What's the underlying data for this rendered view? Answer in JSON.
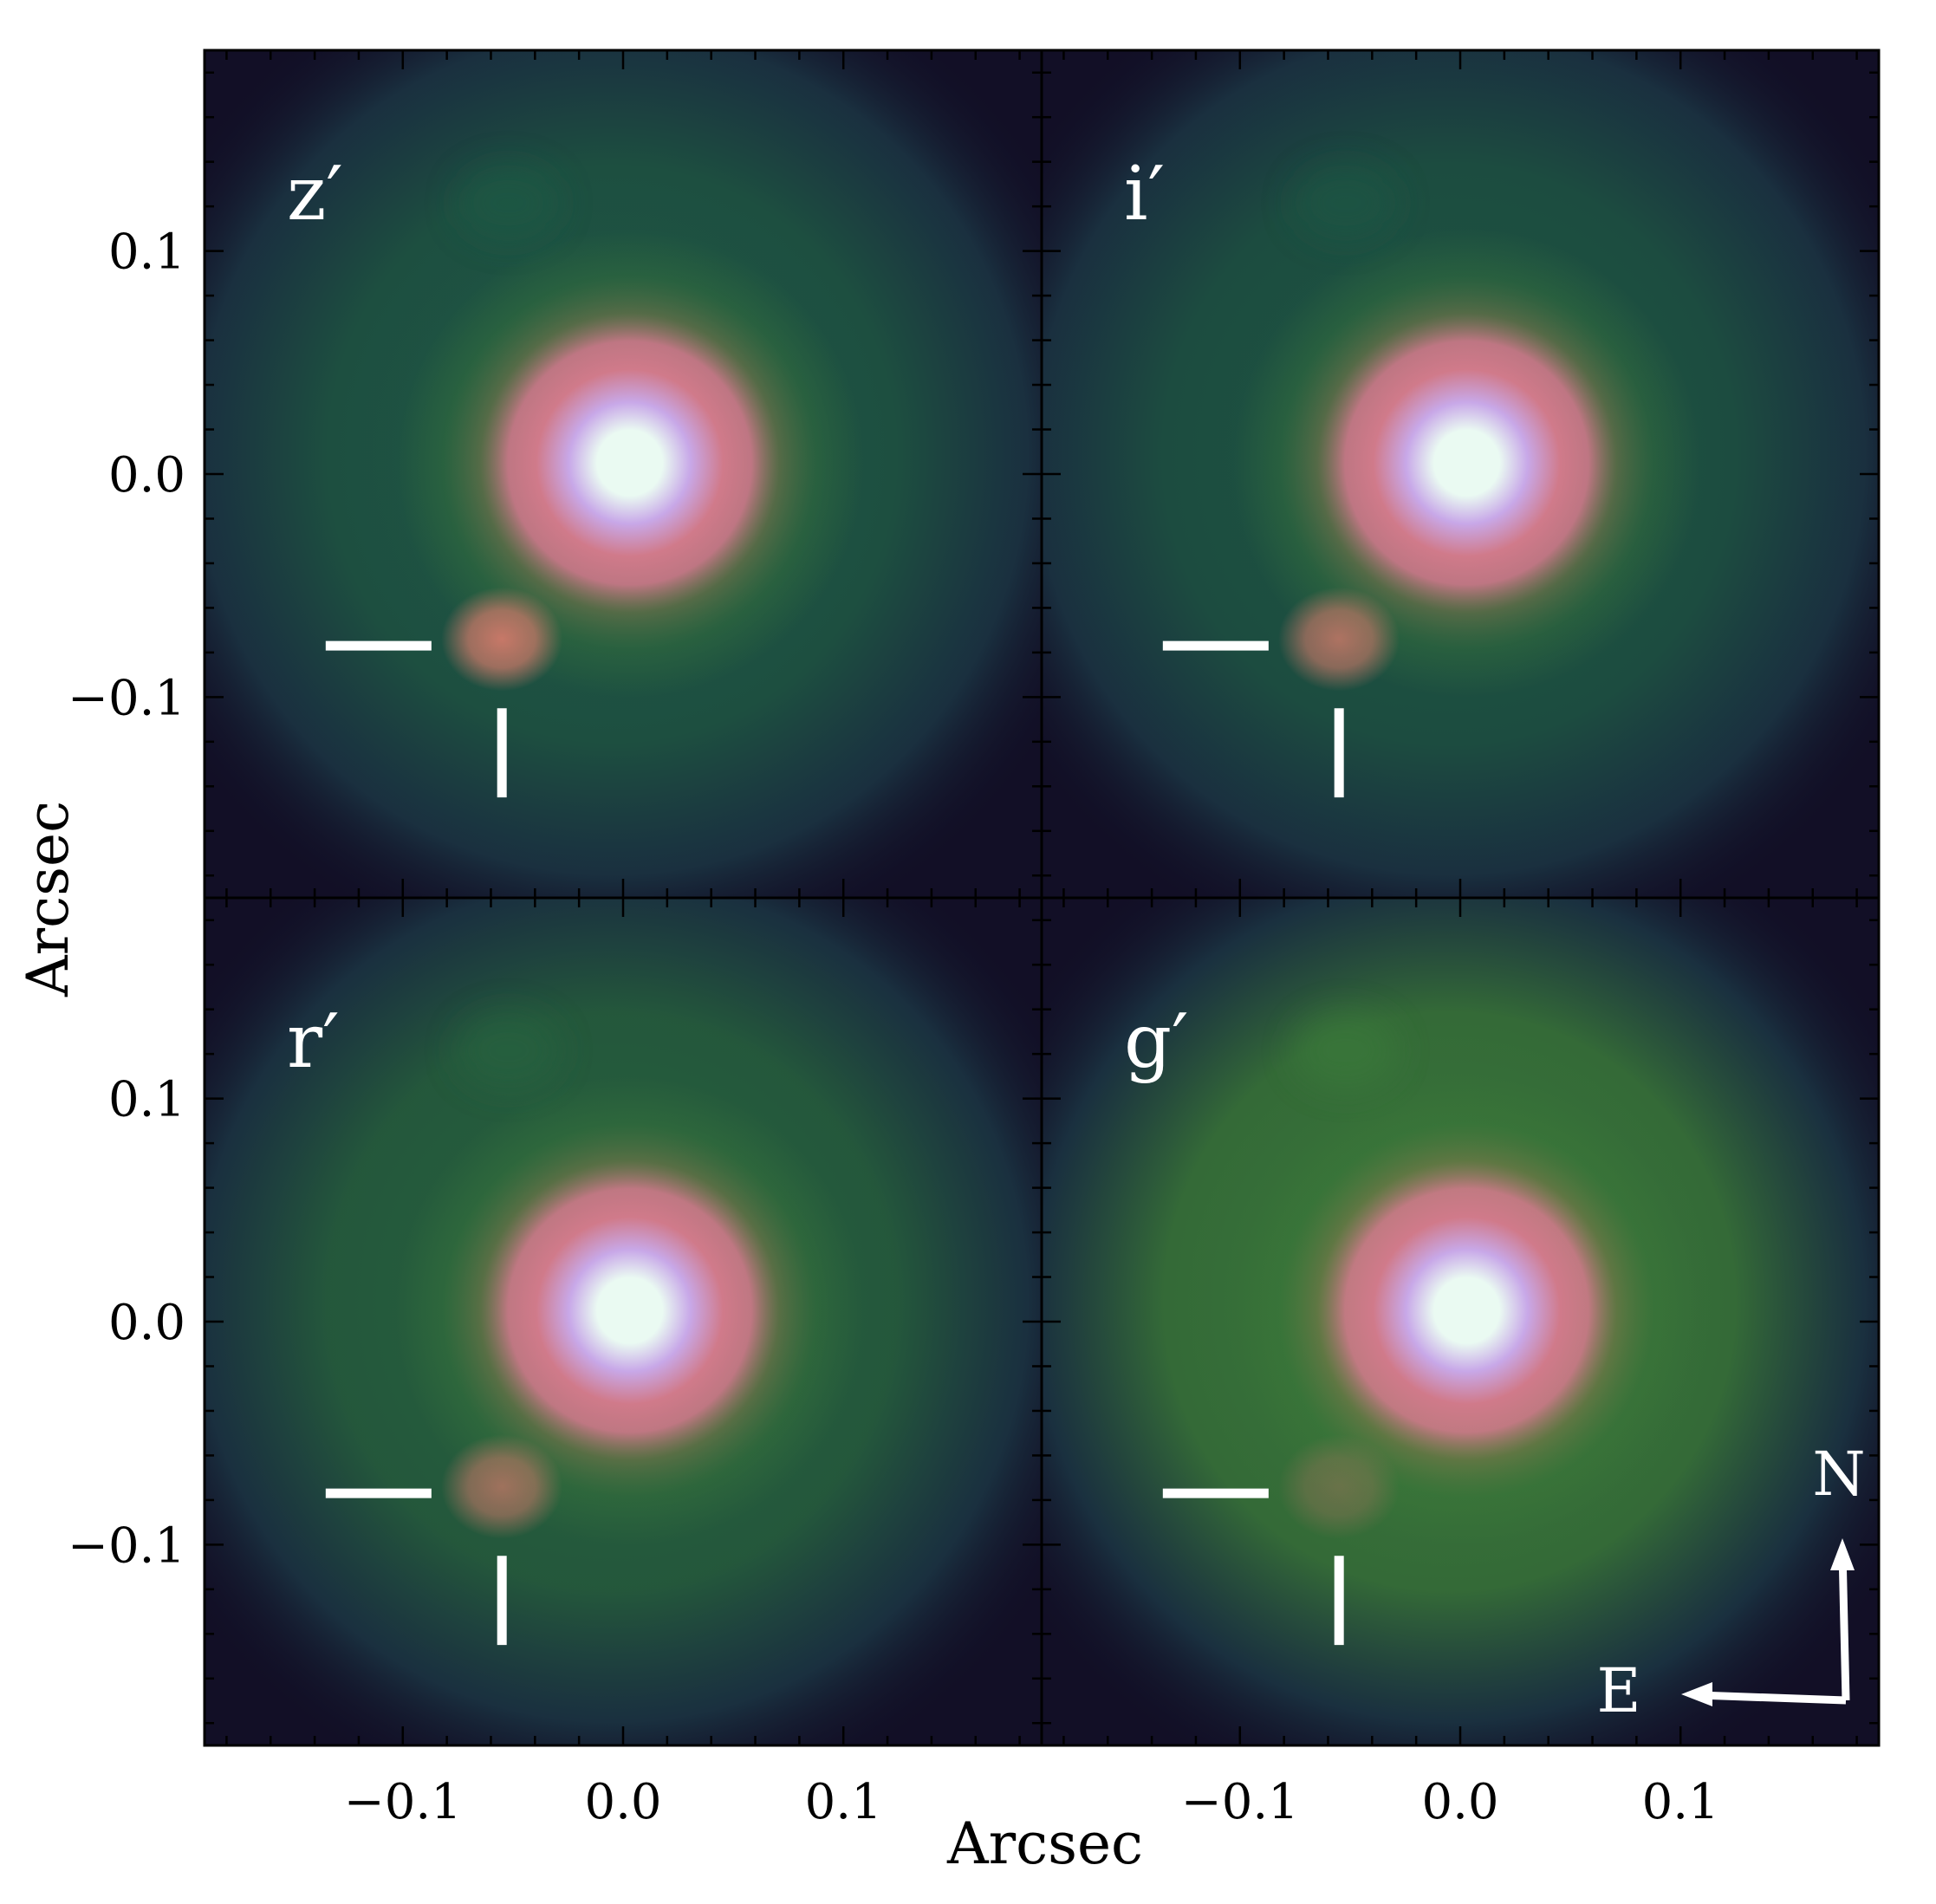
{
  "figure": {
    "xlabel": "Arcsec",
    "ylabel": "Arcsec",
    "xlim": [
      -0.19,
      0.19
    ],
    "ylim": [
      -0.19,
      0.19
    ],
    "tick_values": [
      -0.1,
      0.0,
      0.1
    ],
    "tick_labels": [
      "−0.1",
      "0.0",
      "0.1"
    ],
    "minor_tick_step": 0.02
  },
  "panels": [
    {
      "id": "z",
      "label": "z′",
      "band_color": "#1f5a45",
      "companion_brightness": 1.0
    },
    {
      "id": "i",
      "label": "i′",
      "band_color": "#1e5744",
      "companion_brightness": 0.85
    },
    {
      "id": "r",
      "label": "r′",
      "band_color": "#27643f",
      "companion_brightness": 0.75
    },
    {
      "id": "g",
      "label": "g′",
      "band_color": "#3a7a3a",
      "companion_brightness": 0.35
    }
  ],
  "source": {
    "primary_position": [
      0.003,
      0.005
    ],
    "companion_position": [
      -0.055,
      -0.074
    ]
  },
  "marker": {
    "color": "#ffffff",
    "horizontal_x_range": [
      -0.135,
      -0.087
    ],
    "horizontal_y": -0.077,
    "vertical_x": -0.055,
    "vertical_y_range": [
      -0.105,
      -0.145
    ]
  },
  "compass": {
    "north_label": "N",
    "east_label": "E",
    "color": "#ffffff"
  },
  "colors": {
    "background_dark": "#120f26",
    "halo_green": "#3d7a3a",
    "core_pink": "#d07a8a",
    "core_lilac": "#c8a8e8",
    "core_white": "#eafaf2",
    "companion": "#c77868"
  }
}
